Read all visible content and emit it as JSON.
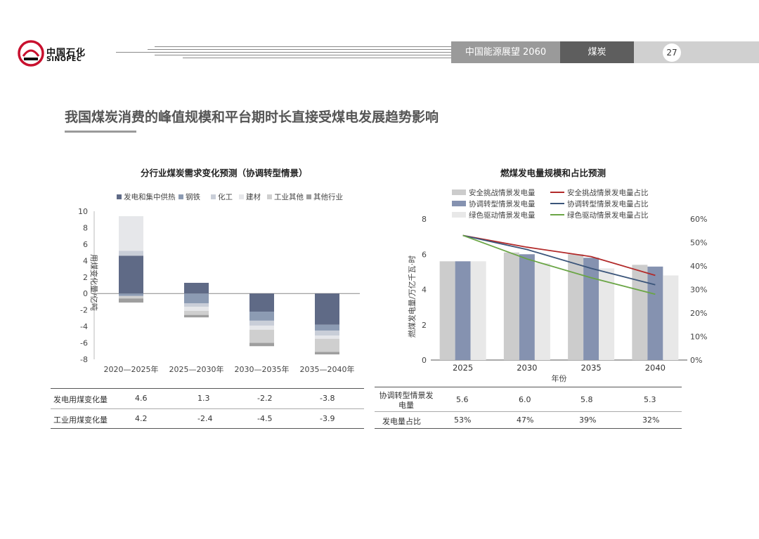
{
  "header": {
    "logo_cn": "中国石化",
    "logo_en": "SINOPEC",
    "report": "中国能源展望 2060",
    "section": "煤炭",
    "page": "27"
  },
  "title": "我国煤炭消费的峰值规模和平台期时长直接受煤电发展趋势影响",
  "colors": {
    "power": "#5f6a86",
    "steel": "#8c9bb3",
    "chem": "#c9ced8",
    "build": "#e6e7ea",
    "ind": "#cfcfcf",
    "other": "#9e9e9e",
    "safe": "#cccccc",
    "coord": "#8592b0",
    "green": "#e8e8e8",
    "safe_line": "#b22a2a",
    "coord_line": "#3b557a",
    "green_line": "#6aa545"
  },
  "chart_data": [
    {
      "type": "bar",
      "title": "分行业煤炭需求变化预测（协调转型情景）",
      "ylabel": "用煤变化量/亿吨",
      "ylim": [
        -8,
        10
      ],
      "yticks": [
        "10",
        "8",
        "6",
        "4",
        "2",
        "0",
        "-2",
        "-4",
        "-6",
        "-8"
      ],
      "categories": [
        "2020—2025年",
        "2025—2030年",
        "2030—2035年",
        "2035—2040年"
      ],
      "legend": [
        "发电和集中供热",
        "钢铁",
        "化工",
        "建材",
        "工业其他",
        "其他行业"
      ],
      "series": [
        {
          "name": "发电和集中供热",
          "values": [
            4.6,
            1.3,
            -2.2,
            -3.8
          ]
        },
        {
          "name": "钢铁",
          "values": [
            -0.3,
            -1.2,
            -1.1,
            -0.7
          ]
        },
        {
          "name": "化工",
          "values": [
            0.6,
            -0.4,
            -0.6,
            -0.6
          ]
        },
        {
          "name": "建材",
          "values": [
            4.2,
            -0.5,
            -0.5,
            -0.4
          ]
        },
        {
          "name": "工业其他",
          "values": [
            -0.3,
            -0.5,
            -1.6,
            -1.6
          ]
        },
        {
          "name": "其他行业",
          "values": [
            -0.5,
            -0.3,
            -0.4,
            -0.3
          ]
        }
      ],
      "table": {
        "rows": [
          {
            "label": "发电用煤变化量",
            "values": [
              "4.6",
              "1.3",
              "-2.2",
              "-3.8"
            ]
          },
          {
            "label": "工业用煤变化量",
            "values": [
              "4.2",
              "-2.4",
              "-4.5",
              "-3.9"
            ]
          }
        ]
      }
    },
    {
      "type": "bar+line",
      "title": "燃煤发电量规模和占比预测",
      "xlabel": "年份",
      "ylabel": "燃煤发电量/万亿千瓦·时",
      "ylim": [
        0,
        8
      ],
      "y2lim": [
        0,
        60
      ],
      "yticks": [
        "0",
        "2",
        "4",
        "6",
        "8"
      ],
      "y2ticks": [
        "0%",
        "10%",
        "20%",
        "30%",
        "40%",
        "50%",
        "60%"
      ],
      "categories": [
        "2025",
        "2030",
        "2035",
        "2040"
      ],
      "bar_series": [
        {
          "name": "安全挑战情景发电量",
          "values": [
            5.6,
            6.1,
            6.0,
            5.4
          ]
        },
        {
          "name": "协调转型情景发电量",
          "values": [
            5.6,
            6.0,
            5.8,
            5.3
          ]
        },
        {
          "name": "绿色驱动情景发电量",
          "values": [
            5.6,
            5.5,
            5.2,
            4.8
          ]
        }
      ],
      "line_series": [
        {
          "name": "安全挑战情景发电量占比",
          "values": [
            53,
            48,
            44,
            36
          ]
        },
        {
          "name": "协调转型情景发电量占比",
          "values": [
            53,
            47,
            39,
            32
          ]
        },
        {
          "name": "绿色驱动情景发电量占比",
          "values": [
            53,
            43,
            35,
            28
          ]
        }
      ],
      "table": {
        "rows": [
          {
            "label": "协调转型情景发电量",
            "values": [
              "5.6",
              "6.0",
              "5.8",
              "5.3"
            ]
          },
          {
            "label": "发电量占比",
            "values": [
              "53%",
              "47%",
              "39%",
              "32%"
            ]
          }
        ]
      }
    }
  ]
}
